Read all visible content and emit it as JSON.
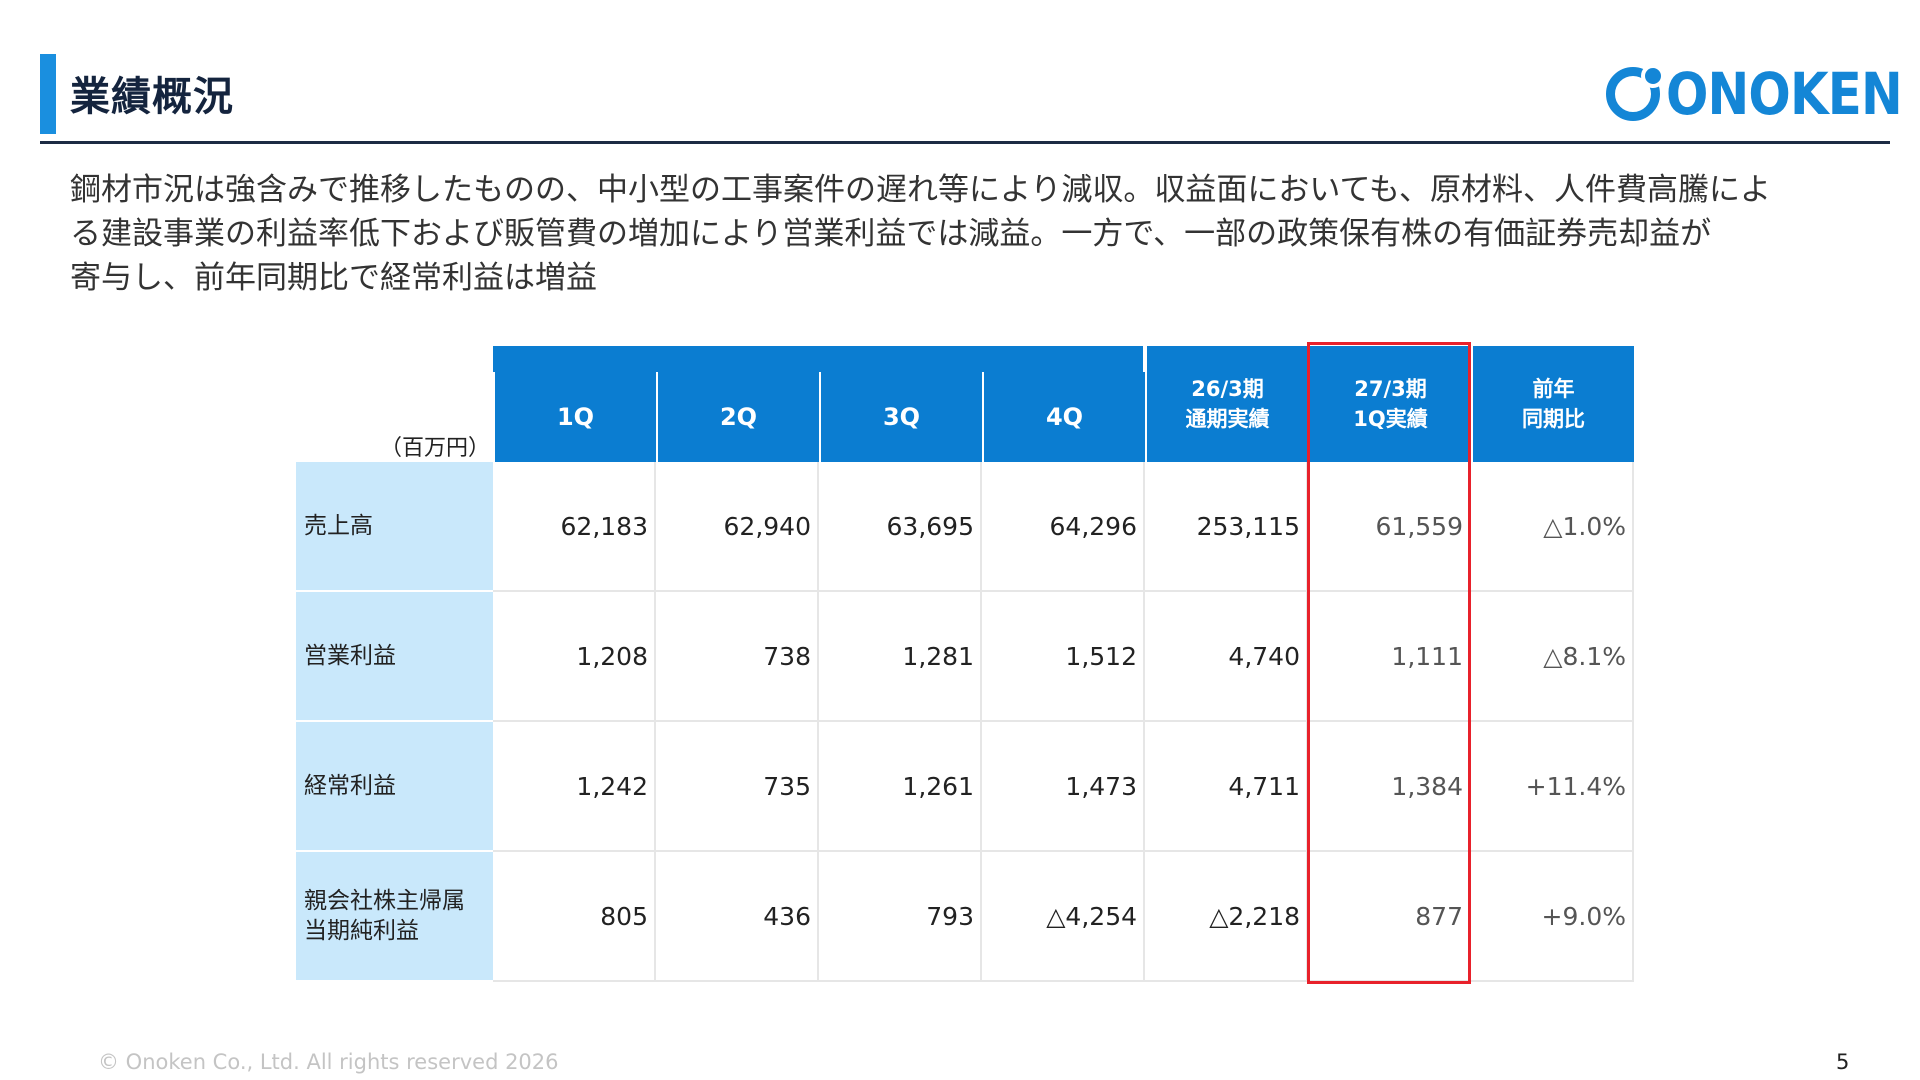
{
  "title": "業績概況",
  "logo_text": "ONOKEN",
  "summary": [
    "鋼材市況は強含みで推移したものの、中小型の工事案件の遅れ等により減収。収益面においても、原材料、人件費高騰によ",
    "る建設事業の利益率低下および販管費の増加により営業利益では減益。一方で、一部の政策保有株の有価証券売却益が",
    "寄与し、前年同期比で経常利益は増益"
  ],
  "table": {
    "unit": "（百万円）",
    "headers": [
      "1Q",
      "2Q",
      "3Q",
      "4Q",
      "26/3期\n通期実績",
      "27/3期\n1Q実績",
      "前年\n同期比"
    ],
    "rows": [
      {
        "label": "売上高",
        "values": [
          "62,183",
          "62,940",
          "63,695",
          "64,296",
          "253,115",
          "61,559",
          "△1.0%"
        ]
      },
      {
        "label": "営業利益",
        "values": [
          "1,208",
          "738",
          "1,281",
          "1,512",
          "4,740",
          "1,111",
          "△8.1%"
        ]
      },
      {
        "label": "経常利益",
        "values": [
          "1,242",
          "735",
          "1,261",
          "1,473",
          "4,711",
          "1,384",
          "+11.4%"
        ]
      },
      {
        "label": "親会社株主帰属\n当期純利益",
        "values": [
          "805",
          "436",
          "793",
          "△4,254",
          "△2,218",
          "877",
          "+9.0%"
        ]
      }
    ]
  },
  "footer": "© Onoken Co., Ltd. All rights reserved 2026",
  "page_number": "5",
  "colors": {
    "accent": "#0b7dd1",
    "label_bg": "#c9e8fb",
    "highlight": "#e8212b",
    "title": "#14243e"
  }
}
